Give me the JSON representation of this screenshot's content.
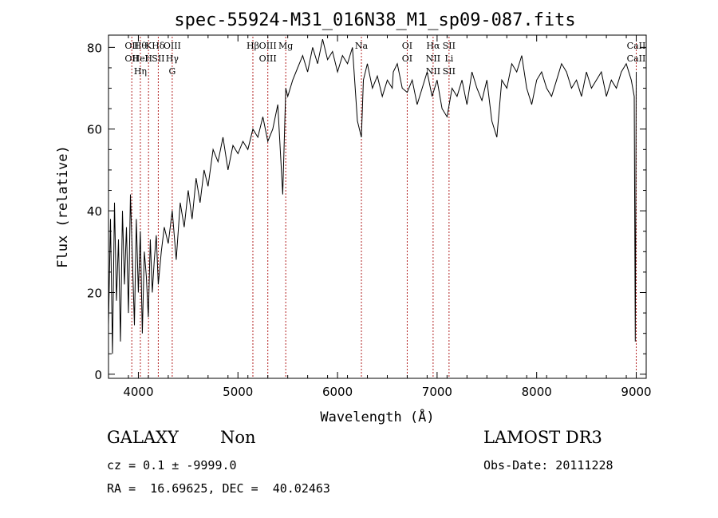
{
  "chart_data": {
    "type": "line",
    "title": "spec-55924-M31_016N38_M1_sp09-087.fits",
    "xlabel": "Wavelength (Å)",
    "ylabel": "Flux (relative)",
    "xlim": [
      3700,
      9100
    ],
    "ylim": [
      -1,
      83
    ],
    "xticks": [
      4000,
      5000,
      6000,
      7000,
      8000,
      9000
    ],
    "yticks": [
      0,
      20,
      40,
      60,
      80
    ],
    "line_color": "#000000",
    "marker_color": "#b22222",
    "series": [
      {
        "name": "flux",
        "x": [
          3700,
          3720,
          3740,
          3760,
          3780,
          3800,
          3820,
          3840,
          3860,
          3880,
          3900,
          3920,
          3940,
          3960,
          3980,
          4000,
          4020,
          4040,
          4060,
          4080,
          4100,
          4120,
          4140,
          4160,
          4180,
          4200,
          4230,
          4260,
          4300,
          4340,
          4380,
          4420,
          4460,
          4500,
          4540,
          4580,
          4620,
          4660,
          4700,
          4750,
          4800,
          4850,
          4900,
          4950,
          5000,
          5050,
          5100,
          5150,
          5200,
          5250,
          5300,
          5350,
          5400,
          5450,
          5480,
          5500,
          5550,
          5600,
          5650,
          5700,
          5750,
          5800,
          5850,
          5900,
          5950,
          6000,
          6050,
          6100,
          6150,
          6200,
          6240,
          6260,
          6300,
          6350,
          6400,
          6450,
          6500,
          6550,
          6560,
          6600,
          6650,
          6700,
          6750,
          6800,
          6850,
          6900,
          6950,
          7000,
          7050,
          7100,
          7150,
          7200,
          7250,
          7300,
          7350,
          7400,
          7450,
          7500,
          7550,
          7600,
          7650,
          7700,
          7750,
          7800,
          7850,
          7900,
          7950,
          8000,
          8050,
          8100,
          8150,
          8200,
          8250,
          8300,
          8350,
          8400,
          8450,
          8500,
          8550,
          8600,
          8650,
          8700,
          8750,
          8800,
          8850,
          8900,
          8950,
          8980,
          8990,
          9000
        ],
        "y": [
          12,
          38,
          5,
          42,
          18,
          33,
          8,
          40,
          22,
          36,
          15,
          44,
          28,
          12,
          38,
          20,
          35,
          10,
          30,
          24,
          14,
          33,
          20,
          28,
          34,
          22,
          30,
          36,
          32,
          40,
          28,
          42,
          36,
          45,
          38,
          48,
          42,
          50,
          46,
          55,
          52,
          58,
          50,
          56,
          54,
          57,
          55,
          60,
          58,
          63,
          57,
          60,
          66,
          44,
          70,
          68,
          72,
          75,
          78,
          74,
          80,
          76,
          82,
          77,
          79,
          74,
          78,
          76,
          80,
          62,
          58,
          72,
          76,
          70,
          73,
          68,
          72,
          70,
          74,
          76,
          70,
          69,
          72,
          66,
          70,
          74,
          68,
          72,
          65,
          63,
          70,
          68,
          72,
          66,
          74,
          70,
          67,
          72,
          62,
          58,
          72,
          70,
          76,
          74,
          78,
          70,
          66,
          72,
          74,
          70,
          68,
          72,
          76,
          74,
          70,
          72,
          68,
          74,
          70,
          72,
          74,
          68,
          72,
          70,
          74,
          76,
          72,
          68,
          8,
          74
        ]
      }
    ],
    "lines": [
      {
        "wave": 3934,
        "labels": [
          "OII",
          "OII"
        ]
      },
      {
        "wave": 4020,
        "labels": [
          "Hθ",
          "HeI",
          "Hη"
        ]
      },
      {
        "wave": 4102,
        "labels": [
          "K",
          "H"
        ]
      },
      {
        "wave": 4200,
        "labels": [
          "Hδ",
          "SII"
        ]
      },
      {
        "wave": 4340,
        "labels": [
          "OIII",
          "Hγ",
          "G"
        ]
      },
      {
        "wave": 5150,
        "labels": [
          "Hβ"
        ]
      },
      {
        "wave": 5300,
        "labels": [
          "OIII",
          "OIII"
        ]
      },
      {
        "wave": 5480,
        "labels": [
          "Mg"
        ]
      },
      {
        "wave": 6240,
        "labels": [
          "Na"
        ]
      },
      {
        "wave": 6700,
        "labels": [
          "OI",
          "OI"
        ]
      },
      {
        "wave": 6960,
        "labels": [
          "Hα",
          "NII",
          "NII"
        ]
      },
      {
        "wave": 7120,
        "labels": [
          "SII",
          "Li",
          "SII"
        ]
      },
      {
        "wave": 9000,
        "labels": [
          "CaII",
          "CaII"
        ]
      }
    ]
  },
  "info": {
    "class_label": "GALAXY",
    "subclass": "Non",
    "survey": "LAMOST DR3",
    "cz_line": "cz = 0.1 ± -9999.0",
    "obs_date": "Obs-Date: 20111228",
    "radec": "RA =  16.69625, DEC =  40.02463"
  }
}
